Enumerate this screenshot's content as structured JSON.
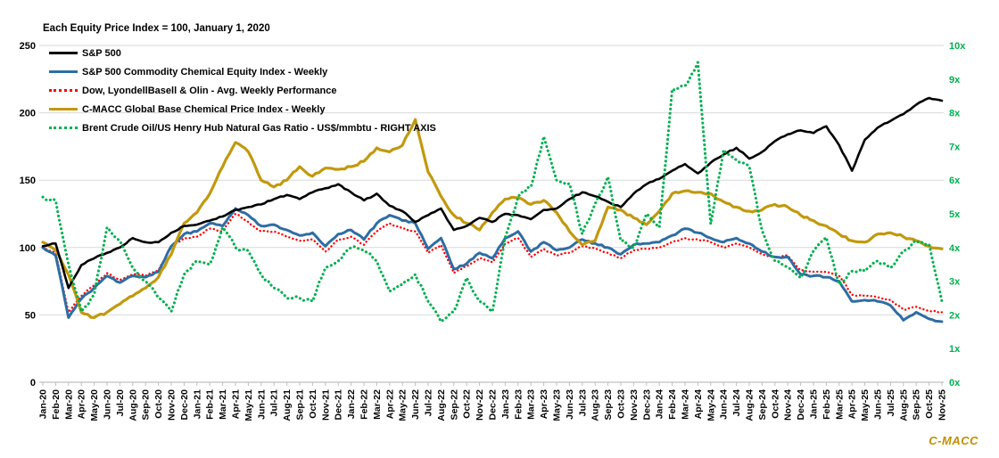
{
  "title": "Each Equity Price Index = 100, January 1, 2020",
  "watermark": "C-MACC",
  "colors": {
    "sp500": "#000000",
    "chem_equity_blue": "#2E6DA4",
    "dow_lyb_olin_red": "#FF0000",
    "cmacc_gold": "#C2990E",
    "brent_hh_green": "#00B050",
    "gridline": "#D9D9D9",
    "axis_line": "#BFBFBF",
    "right_axis_text": "#00B050",
    "watermark_gold": "#BF9000"
  },
  "chart_data": {
    "type": "line",
    "title": "Each Equity Price Index = 100, January 1, 2020",
    "grid": true,
    "legend_position": "top-left",
    "x_tick_labels": [
      "Jan-20",
      "Feb-20",
      "Mar-20",
      "Apr-20",
      "May-20",
      "Jun-20",
      "Jul-20",
      "Aug-20",
      "Sep-20",
      "Oct-20",
      "Nov-20",
      "Dec-20",
      "Jan-21",
      "Feb-21",
      "Mar-21",
      "Apr-21",
      "May-21",
      "Jun-21",
      "Jul-21",
      "Aug-21",
      "Sep-21",
      "Oct-21",
      "Nov-21",
      "Dec-21",
      "Jan-22",
      "Feb-22",
      "Mar-22",
      "Apr-22",
      "May-22",
      "Jun-22",
      "Jul-22",
      "Aug-22",
      "Sep-22",
      "Oct-22",
      "Nov-22",
      "Dec-22",
      "Jan-23",
      "Feb-23",
      "Mar-23",
      "Apr-23",
      "May-23",
      "Jun-23",
      "Jul-23",
      "Aug-23",
      "Sep-23",
      "Oct-23",
      "Nov-23",
      "Dec-23",
      "Jan-24",
      "Feb-24",
      "Mar-24",
      "Apr-24",
      "May-24",
      "Jun-24",
      "Jul-24",
      "Aug-24",
      "Sep-24",
      "Oct-24",
      "Nov-24",
      "Dec-24",
      "Jan-25",
      "Feb-25",
      "Mar-25",
      "Apr-25",
      "May-25",
      "Jun-25",
      "Jul-25",
      "Aug-25",
      "Sep-25",
      "Oct-25",
      "Nov-25"
    ],
    "left_axis": {
      "min": 0,
      "max": 250,
      "tick_values": [
        0,
        50,
        100,
        150,
        200,
        250
      ],
      "tick_labels": [
        "0",
        "50",
        "100",
        "150",
        "200",
        "250"
      ]
    },
    "right_axis": {
      "min": 0,
      "max": 10,
      "tick_values": [
        0,
        1,
        2,
        3,
        4,
        5,
        6,
        7,
        8,
        9,
        10
      ],
      "tick_labels": [
        "0x",
        "1x",
        "2x",
        "3x",
        "4x",
        "5x",
        "6x",
        "7x",
        "8x",
        "9x",
        "10x"
      ]
    },
    "series": [
      {
        "name": "S&P 500",
        "color": "#000000",
        "style": "solid",
        "axis": "left",
        "values": [
          101,
          103,
          70,
          87,
          92,
          96,
          100,
          107,
          104,
          104,
          111,
          116,
          117,
          120,
          123,
          128,
          130,
          132,
          136,
          139,
          136,
          141,
          144,
          147,
          141,
          135,
          140,
          131,
          127,
          119,
          124,
          129,
          113,
          116,
          122,
          119,
          125,
          124,
          121,
          128,
          129,
          136,
          141,
          138,
          134,
          130,
          140,
          147,
          151,
          157,
          162,
          155,
          163,
          169,
          174,
          166,
          171,
          179,
          184,
          187,
          185,
          190,
          176,
          157,
          180,
          189,
          194,
          199,
          206,
          211,
          209
        ]
      },
      {
        "name": "S&P 500 Commodity Chemical Equity Index - Weekly",
        "color": "#2E6DA4",
        "style": "solid",
        "axis": "left",
        "values": [
          100,
          94,
          48,
          62,
          70,
          79,
          74,
          79,
          78,
          82,
          101,
          110,
          112,
          118,
          116,
          129,
          124,
          116,
          117,
          113,
          109,
          111,
          101,
          110,
          113,
          106,
          118,
          124,
          120,
          118,
          99,
          107,
          84,
          88,
          96,
          92,
          107,
          112,
          97,
          104,
          98,
          100,
          106,
          103,
          100,
          95,
          102,
          103,
          104,
          109,
          114,
          111,
          107,
          104,
          107,
          103,
          97,
          93,
          93,
          80,
          79,
          78,
          75,
          60,
          61,
          60,
          57,
          46,
          52,
          47,
          45
        ]
      },
      {
        "name": "Dow, LyondellBasell & Olin - Avg. Weekly Performance",
        "color": "#FF0000",
        "style": "dotted",
        "axis": "left",
        "values": [
          100,
          96,
          52,
          64,
          72,
          81,
          76,
          80,
          79,
          83,
          100,
          107,
          108,
          114,
          112,
          125,
          119,
          112,
          112,
          108,
          105,
          106,
          97,
          106,
          108,
          102,
          112,
          118,
          114,
          112,
          96,
          102,
          81,
          86,
          92,
          89,
          103,
          107,
          93,
          99,
          94,
          96,
          101,
          99,
          96,
          92,
          98,
          99,
          100,
          104,
          107,
          106,
          104,
          100,
          103,
          100,
          95,
          93,
          94,
          83,
          82,
          82,
          79,
          65,
          64,
          63,
          61,
          54,
          56,
          53,
          52
        ]
      },
      {
        "name": "C-MACC Global Base Chemical Price Index - Weekly",
        "color": "#C2990E",
        "style": "solid",
        "axis": "left",
        "values": [
          104,
          98,
          80,
          52,
          48,
          52,
          58,
          64,
          70,
          78,
          95,
          118,
          126,
          140,
          160,
          178,
          171,
          150,
          145,
          150,
          160,
          153,
          159,
          158,
          160,
          164,
          174,
          171,
          176,
          195,
          156,
          138,
          124,
          118,
          113,
          126,
          136,
          137,
          132,
          135,
          126,
          112,
          102,
          105,
          130,
          128,
          122,
          117,
          127,
          140,
          142,
          141,
          140,
          134,
          130,
          127,
          128,
          132,
          130,
          124,
          120,
          116,
          110,
          105,
          104,
          110,
          111,
          108,
          105,
          101,
          99
        ]
      },
      {
        "name": "Brent Crude Oil/US Henry Hub Natural Gas Ratio - US$/mmbtu - RIGHT AXIS",
        "color": "#00B050",
        "style": "dotted",
        "axis": "right",
        "values": [
          5.5,
          5.4,
          3.5,
          2.1,
          2.6,
          4.6,
          4.2,
          3.4,
          3.0,
          2.5,
          2.1,
          3.2,
          3.6,
          3.5,
          4.6,
          4.0,
          3.9,
          3.2,
          2.8,
          2.5,
          2.5,
          2.4,
          3.4,
          3.6,
          4.0,
          3.9,
          3.6,
          2.7,
          2.9,
          3.2,
          2.4,
          1.8,
          2.1,
          3.1,
          2.4,
          2.1,
          4.3,
          5.5,
          5.8,
          7.3,
          6.0,
          5.9,
          4.4,
          5.3,
          6.1,
          4.2,
          4.0,
          5.0,
          4.6,
          8.7,
          8.8,
          9.5,
          4.7,
          6.9,
          6.6,
          6.4,
          4.5,
          3.6,
          3.4,
          3.1,
          3.9,
          4.3,
          2.9,
          3.3,
          3.3,
          3.6,
          3.4,
          3.9,
          4.2,
          4.1,
          2.4
        ]
      }
    ]
  }
}
